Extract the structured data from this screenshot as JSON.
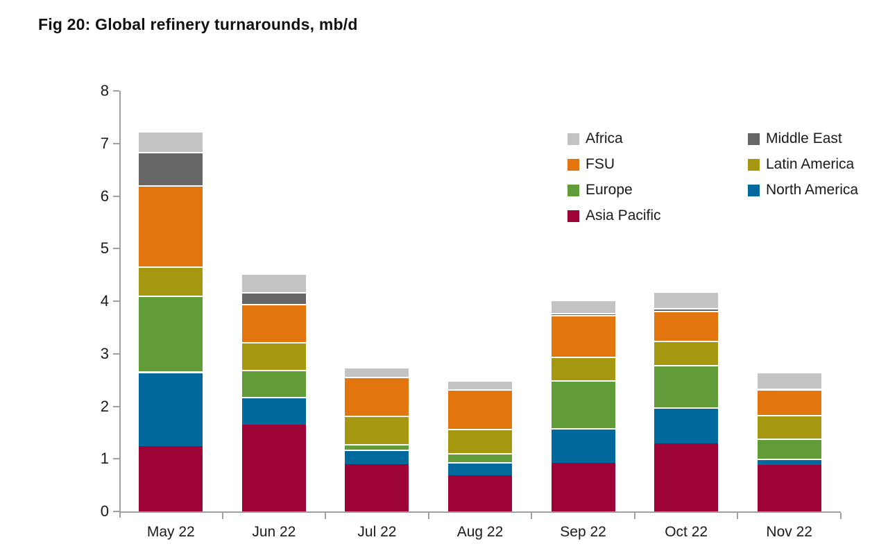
{
  "figure_title": "Fig 20: Global refinery turnarounds, mb/d",
  "chart_data": {
    "type": "bar",
    "stacked": true,
    "title": "Fig 20: Global refinery turnarounds, mb/d",
    "value_unit": "mb/d",
    "categories": [
      "May 22",
      "Jun 22",
      "Jul 22",
      "Aug 22",
      "Sep 22",
      "Oct 22",
      "Nov 22"
    ],
    "series": [
      {
        "name": "Asia Pacific",
        "color": "#9e0337",
        "values": [
          1.24,
          1.65,
          0.9,
          0.68,
          0.92,
          1.29,
          0.89
        ]
      },
      {
        "name": "North America",
        "color": "#01699c",
        "values": [
          1.42,
          0.53,
          0.28,
          0.26,
          0.67,
          0.69,
          0.11
        ]
      },
      {
        "name": "Europe",
        "color": "#619c39",
        "values": [
          1.45,
          0.51,
          0.1,
          0.17,
          0.9,
          0.81,
          0.39
        ]
      },
      {
        "name": "Latin America",
        "color": "#a69710",
        "values": [
          0.55,
          0.53,
          0.54,
          0.46,
          0.45,
          0.46,
          0.45
        ]
      },
      {
        "name": "FSU",
        "color": "#e2750d",
        "values": [
          1.54,
          0.73,
          0.74,
          0.76,
          0.79,
          0.57,
          0.49
        ]
      },
      {
        "name": "Middle East",
        "color": "#666666",
        "values": [
          0.64,
          0.22,
          0.0,
          0.0,
          0.04,
          0.05,
          0.0
        ]
      },
      {
        "name": "Africa",
        "color": "#c3c3c3",
        "values": [
          0.4,
          0.36,
          0.18,
          0.17,
          0.25,
          0.31,
          0.32
        ]
      }
    ],
    "totals": [
      7.24,
      4.53,
      2.74,
      2.5,
      4.02,
      4.18,
      2.65
    ],
    "ylim": [
      0,
      8
    ],
    "yticks": [
      0,
      1,
      2,
      3,
      4,
      5,
      6,
      7,
      8
    ],
    "xlabel": "",
    "ylabel": "",
    "grid": false,
    "legend": {
      "position": "inside-upper-right",
      "columns": [
        [
          "Africa",
          "FSU",
          "Europe",
          "Asia Pacific"
        ],
        [
          "Middle East",
          "Latin America",
          "North America"
        ]
      ]
    },
    "axis_color": "#a0a0a0",
    "text_color": "#1a1a1a"
  }
}
